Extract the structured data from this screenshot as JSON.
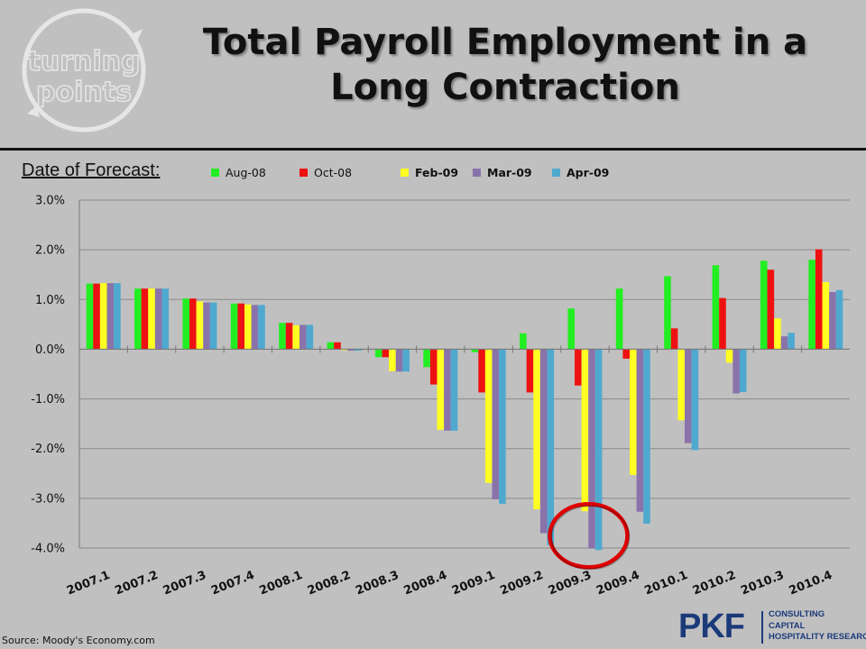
{
  "title": {
    "line1": "Total Payroll Employment in a",
    "line2": "Long Contraction"
  },
  "logo": {
    "word1": "turning",
    "word2": "points"
  },
  "legend_label": "Date of Forecast:",
  "footnote": "Source: Moody's Economy.com",
  "brand": {
    "mark": "PKF",
    "lines": [
      "CONSULTING",
      "CAPITAL",
      "HOSPITALITY RESEARCH"
    ]
  },
  "colors": {
    "background": "#c0c0c0",
    "highlight_circle": "#e00000"
  },
  "chart_data": {
    "type": "bar",
    "title": "Total Payroll Employment in a Long Contraction",
    "xlabel": "",
    "ylabel": "",
    "ylim": [
      -4.0,
      3.0
    ],
    "yticks": [
      "-4.0%",
      "-3.0%",
      "-2.0%",
      "-1.0%",
      "0.0%",
      "1.0%",
      "2.0%",
      "3.0%"
    ],
    "grid": true,
    "legend_position": "top",
    "categories": [
      "2007.1",
      "2007.2",
      "2007.3",
      "2007.4",
      "2008.1",
      "2008.2",
      "2008.3",
      "2008.4",
      "2009.1",
      "2009.2",
      "2009.3",
      "2009.4",
      "2010.1",
      "2010.2",
      "2010.3",
      "2010.4"
    ],
    "series": [
      {
        "name": "Aug-08",
        "color": "#22ee22",
        "bold": false,
        "values": [
          1.32,
          1.22,
          1.02,
          0.92,
          0.53,
          0.14,
          -0.16,
          -0.36,
          -0.06,
          0.32,
          0.82,
          1.22,
          1.47,
          1.69,
          1.78,
          1.8
        ]
      },
      {
        "name": "Oct-08",
        "color": "#ee1111",
        "bold": false,
        "values": [
          1.32,
          1.22,
          1.02,
          0.92,
          0.53,
          0.14,
          -0.16,
          -0.71,
          -0.87,
          -0.87,
          -0.73,
          -0.19,
          0.42,
          1.03,
          1.6,
          2.01
        ]
      },
      {
        "name": "Feb-09",
        "color": "#ffff22",
        "bold": true,
        "values": [
          1.33,
          1.22,
          0.96,
          0.9,
          0.48,
          -0.02,
          -0.44,
          -1.62,
          -2.69,
          -3.22,
          -3.26,
          -2.53,
          -1.43,
          -0.27,
          0.62,
          1.35
        ]
      },
      {
        "name": "Mar-09",
        "color": "#8a73aa",
        "bold": true,
        "values": [
          1.33,
          1.22,
          0.94,
          0.89,
          0.49,
          -0.03,
          -0.45,
          -1.64,
          -3.02,
          -3.7,
          -4.01,
          -3.27,
          -1.89,
          -0.89,
          0.26,
          1.15
        ]
      },
      {
        "name": "Apr-09",
        "color": "#4fa9cf",
        "bold": true,
        "values": [
          1.33,
          1.22,
          0.94,
          0.89,
          0.49,
          -0.03,
          -0.45,
          -1.64,
          -3.11,
          -3.94,
          -4.04,
          -3.51,
          -2.03,
          -0.86,
          0.33,
          1.19
        ]
      }
    ],
    "highlight_category": "2009.3"
  }
}
